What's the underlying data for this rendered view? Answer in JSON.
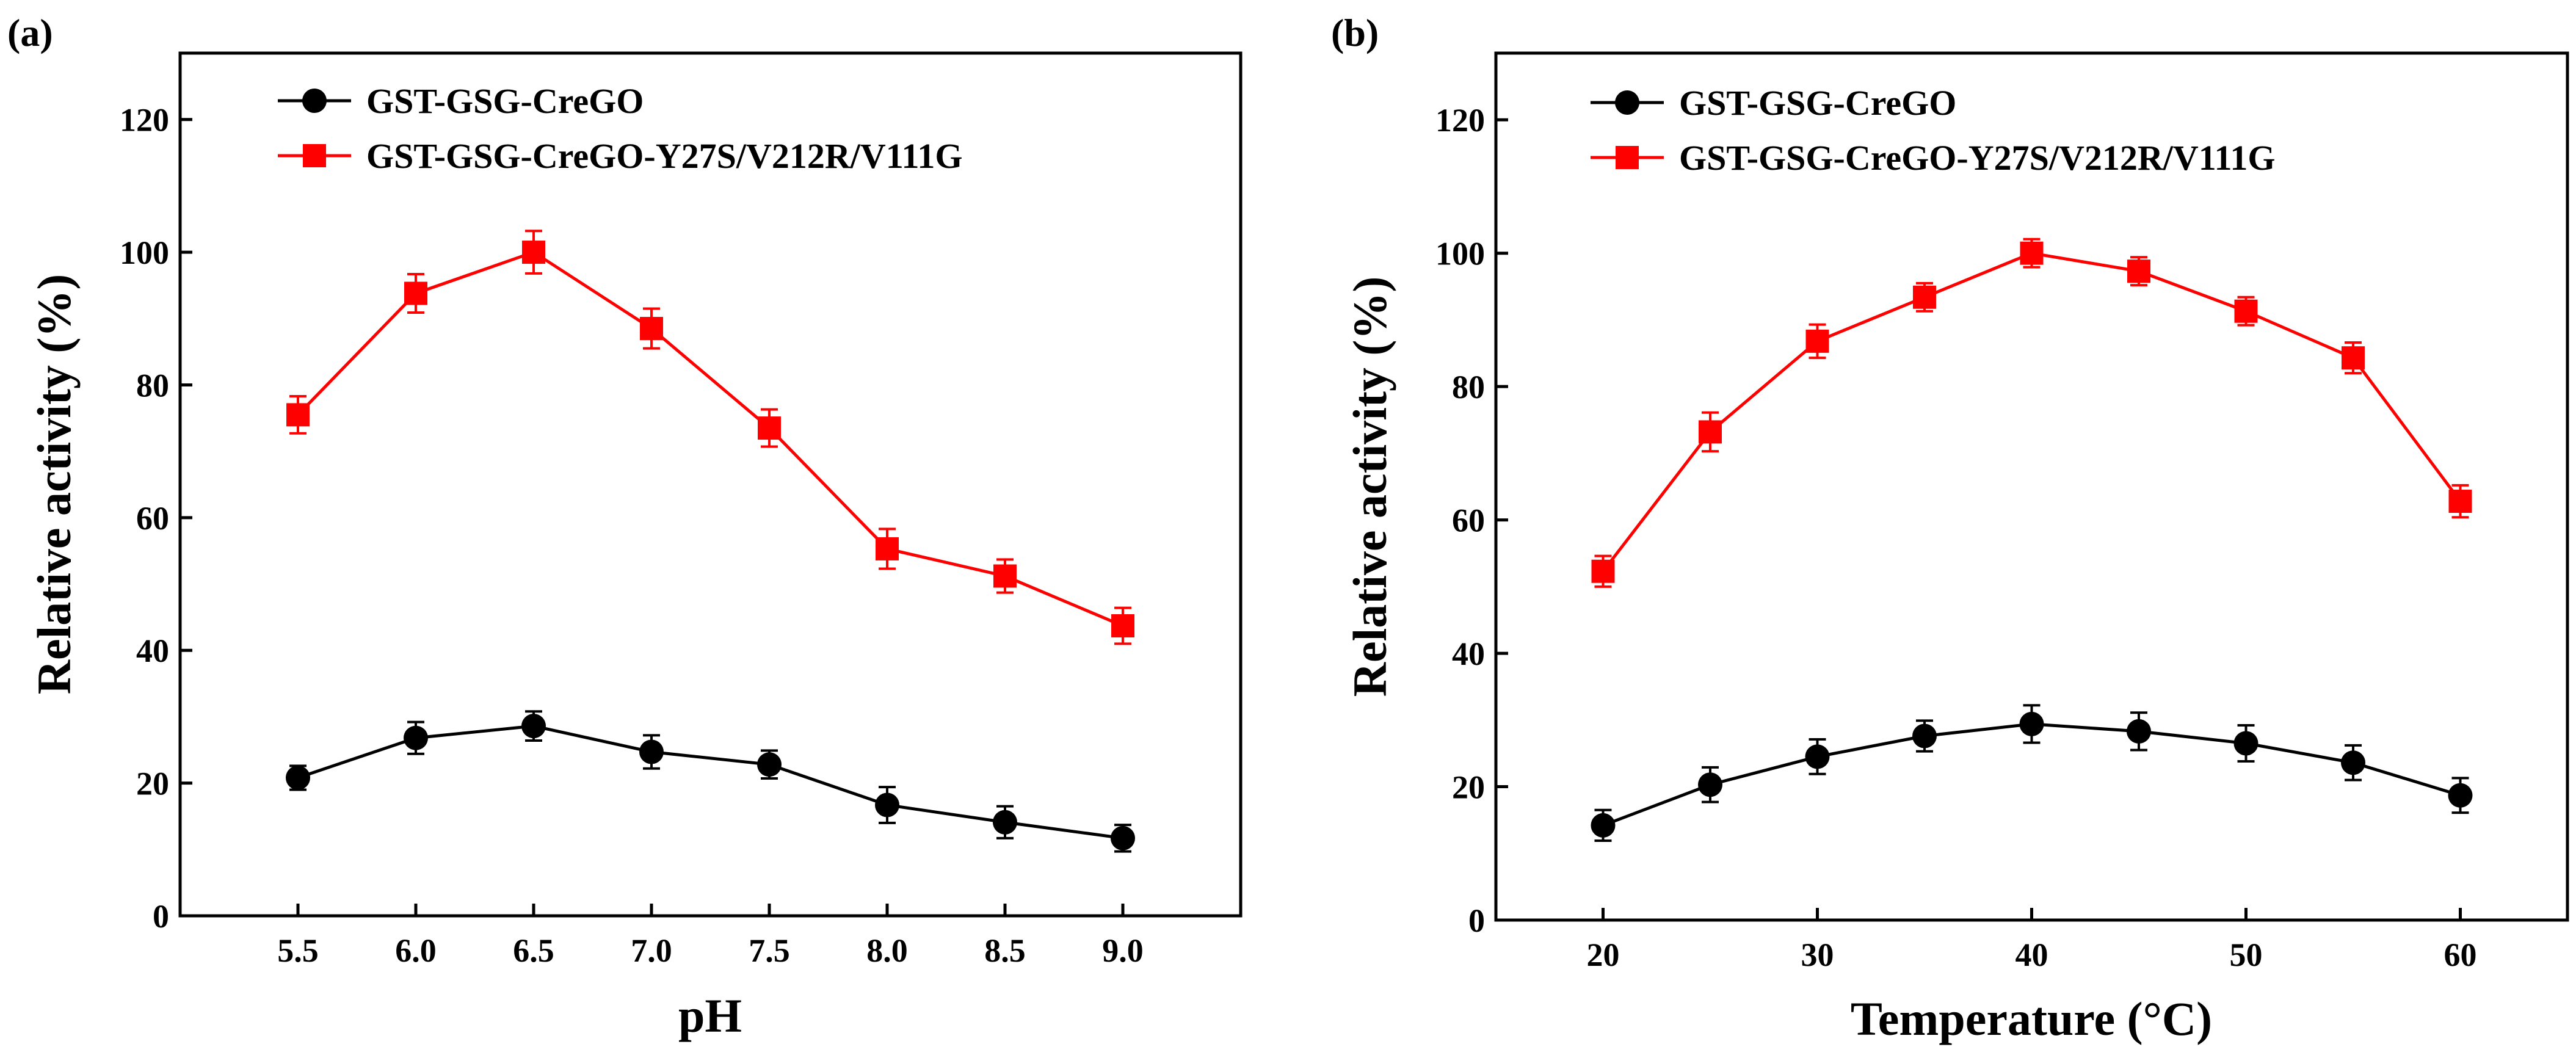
{
  "chart_data": [
    {
      "type": "line",
      "panel_label": "(a)",
      "xlabel": "pH",
      "ylabel": "Relative activity (%)",
      "x": [
        5.5,
        6.0,
        6.5,
        7.0,
        7.5,
        8.0,
        8.5,
        9.0
      ],
      "x_tick_labels": [
        "5.5",
        "6.0",
        "6.5",
        "7.0",
        "7.5",
        "8.0",
        "8.5",
        "9.0"
      ],
      "xlim": [
        5.0,
        9.5
      ],
      "ylim": [
        0,
        130
      ],
      "y_ticks": [
        0,
        20,
        40,
        60,
        80,
        100,
        120
      ],
      "y_tick_labels": [
        "0",
        "20",
        "40",
        "60",
        "80",
        "100",
        "120"
      ],
      "legend_position": "top-left",
      "series": [
        {
          "name": "GST-GSG-CreGO",
          "color": "#000000",
          "marker": "circle",
          "values": [
            20.8,
            26.8,
            28.6,
            24.7,
            22.8,
            16.7,
            14.1,
            11.7
          ],
          "errors": [
            1.8,
            2.4,
            2.2,
            2.5,
            2.1,
            2.7,
            2.4,
            2.0
          ]
        },
        {
          "name": "GST-GSG-CreGO-Y27S/V212R/V111G",
          "color": "#ff0000",
          "marker": "square",
          "values": [
            75.5,
            93.8,
            100.0,
            88.5,
            73.5,
            55.3,
            51.2,
            43.7
          ],
          "errors": [
            2.8,
            2.9,
            3.2,
            3.0,
            2.8,
            3.0,
            2.5,
            2.7
          ]
        }
      ]
    },
    {
      "type": "line",
      "panel_label": "(b)",
      "xlabel": "Temperature (°C)",
      "ylabel": "Relative activity (%)",
      "x": [
        20,
        25,
        30,
        35,
        40,
        45,
        50,
        55,
        60
      ],
      "x_ticks": [
        20,
        30,
        40,
        50,
        60
      ],
      "x_tick_labels": [
        "20",
        "30",
        "40",
        "50",
        "60"
      ],
      "xlim": [
        15,
        65
      ],
      "ylim": [
        0,
        130
      ],
      "y_ticks": [
        0,
        20,
        40,
        60,
        80,
        100,
        120
      ],
      "y_tick_labels": [
        "0",
        "20",
        "40",
        "60",
        "80",
        "100",
        "120"
      ],
      "legend_position": "top-left",
      "series": [
        {
          "name": "GST-GSG-CreGO",
          "color": "#000000",
          "marker": "circle",
          "values": [
            14.2,
            20.3,
            24.5,
            27.6,
            29.4,
            28.3,
            26.5,
            23.6,
            18.7
          ],
          "errors": [
            2.3,
            2.6,
            2.6,
            2.3,
            2.8,
            2.8,
            2.7,
            2.6,
            2.6
          ]
        },
        {
          "name": "GST-GSG-CreGO-Y27S/V212R/V111G",
          "color": "#ff0000",
          "marker": "square",
          "values": [
            52.3,
            73.2,
            86.8,
            93.4,
            100.0,
            97.3,
            91.3,
            84.3,
            62.8
          ],
          "errors": [
            2.3,
            2.9,
            2.5,
            2.1,
            2.1,
            2.1,
            2.1,
            2.3,
            2.4
          ]
        }
      ]
    }
  ]
}
